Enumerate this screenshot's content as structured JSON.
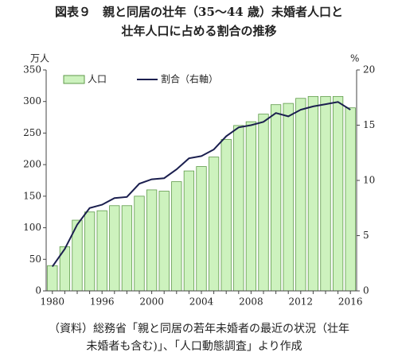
{
  "chart_data": {
    "type": "bar_line",
    "title": [
      "図表９　親と同居の壮年（35～44 歳）未婚者人口と",
      "壮年人口に占める割合の推移"
    ],
    "y_label": "万人",
    "y2_label": "%",
    "categories": [
      "1980",
      null,
      null,
      null,
      "1996",
      null,
      null,
      null,
      "2000",
      null,
      null,
      null,
      "2004",
      null,
      null,
      null,
      "2008",
      null,
      null,
      null,
      "2012",
      null,
      null,
      null,
      "2016"
    ],
    "series": [
      {
        "name": "人口",
        "type": "bar",
        "color": "#cdf2be",
        "edge": "#5f9a4a",
        "values": [
          40,
          70,
          112,
          125,
          127,
          135,
          135,
          150,
          160,
          158,
          173,
          190,
          197,
          212,
          240,
          262,
          268,
          280,
          295,
          297,
          305,
          308,
          308,
          308,
          290
        ]
      },
      {
        "name": "割合（右軸）",
        "type": "line",
        "axis": "y2",
        "color": "#1b1f4f",
        "values": [
          2.2,
          3.8,
          6.0,
          7.5,
          7.8,
          8.4,
          8.5,
          9.7,
          10.1,
          10.2,
          11.0,
          12.0,
          12.2,
          12.8,
          14.0,
          14.8,
          15.0,
          15.3,
          16.1,
          15.8,
          16.4,
          16.7,
          16.9,
          17.1,
          16.4
        ]
      }
    ],
    "ylim": [
      0,
      350
    ],
    "yticks": [
      0,
      50,
      100,
      150,
      200,
      250,
      300,
      350
    ],
    "y2lim": [
      0,
      20
    ],
    "y2ticks": [
      0,
      5,
      10,
      15,
      20
    ],
    "legend": "top-left",
    "note": [
      "（資料）総務省「親と同居の若年未婚者の最近の状況（壮年",
      "未婚者も含む)」、「人口動態調査」より作成"
    ]
  }
}
